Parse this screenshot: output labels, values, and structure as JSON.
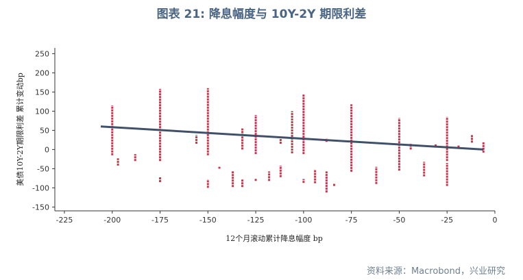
{
  "title": "图表 21: 降息幅度与 10Y-2Y 期限利差",
  "source": "资料来源：Macrobond，兴业研究",
  "colors": {
    "series": "#c8374a",
    "trend": "#3f5068",
    "title": "#4a6583",
    "source": "#6f8092"
  },
  "chart_data": {
    "type": "scatter",
    "xlabel": "12个月滚动累计降息幅度 bp",
    "ylabel": "美债10Y-2Y期限利差 累计变动bp",
    "xlim": [
      -230,
      0
    ],
    "ylim": [
      -160,
      265
    ],
    "xticks": [
      "-225",
      "-200",
      "-175",
      "-150",
      "-125",
      "-100",
      "-75",
      "-50",
      "-25",
      "0"
    ],
    "yticks": [
      "250",
      "200",
      "150",
      "100",
      "50",
      "0",
      "-50",
      "-100",
      "-150"
    ],
    "grid": false,
    "series": [
      {
        "segments": [
          {
            "x": -200,
            "y1": -15,
            "y2": 115
          },
          {
            "x": -197,
            "y1": -42,
            "y2": -23
          },
          {
            "x": -188,
            "y1": -30,
            "y2": -12
          },
          {
            "x": -175,
            "y1": -85,
            "y2": -72
          },
          {
            "x": -175,
            "y1": -30,
            "y2": 158
          },
          {
            "x": -156,
            "y1": 15,
            "y2": 38
          },
          {
            "x": -150,
            "y1": -100,
            "y2": -78
          },
          {
            "x": -150,
            "y1": -15,
            "y2": 160
          },
          {
            "x": -144,
            "y1": -50,
            "y2": -45
          },
          {
            "x": -137,
            "y1": -98,
            "y2": -55
          },
          {
            "x": -132,
            "y1": -98,
            "y2": -77
          },
          {
            "x": -132,
            "y1": 0,
            "y2": 55
          },
          {
            "x": -125,
            "y1": -82,
            "y2": -75
          },
          {
            "x": -125,
            "y1": -12,
            "y2": 90
          },
          {
            "x": -118,
            "y1": -82,
            "y2": -57
          },
          {
            "x": -112,
            "y1": -72,
            "y2": -42
          },
          {
            "x": -112,
            "y1": 15,
            "y2": 30
          },
          {
            "x": -106,
            "y1": -10,
            "y2": 100
          },
          {
            "x": -100,
            "y1": -87,
            "y2": -77
          },
          {
            "x": -100,
            "y1": -12,
            "y2": 145
          },
          {
            "x": -94,
            "y1": -88,
            "y2": -52
          },
          {
            "x": -88,
            "y1": -112,
            "y2": -57
          },
          {
            "x": -88,
            "y1": 20,
            "y2": 28
          },
          {
            "x": -84,
            "y1": -95,
            "y2": -88
          },
          {
            "x": -75,
            "y1": -58,
            "y2": 118
          },
          {
            "x": -62,
            "y1": -90,
            "y2": -45
          },
          {
            "x": -50,
            "y1": -55,
            "y2": 82
          },
          {
            "x": -44,
            "y1": 0,
            "y2": 15
          },
          {
            "x": -37,
            "y1": -70,
            "y2": -32
          },
          {
            "x": -31,
            "y1": 8,
            "y2": 15
          },
          {
            "x": -25,
            "y1": -95,
            "y2": -35
          },
          {
            "x": -25,
            "y1": -30,
            "y2": 85
          },
          {
            "x": -19,
            "y1": 5,
            "y2": 12
          },
          {
            "x": -12,
            "y1": 18,
            "y2": 38
          },
          {
            "x": -6,
            "y1": -8,
            "y2": 20
          }
        ]
      }
    ],
    "trendline": {
      "x": [
        -206,
        -6
      ],
      "y": [
        60,
        0
      ]
    }
  }
}
